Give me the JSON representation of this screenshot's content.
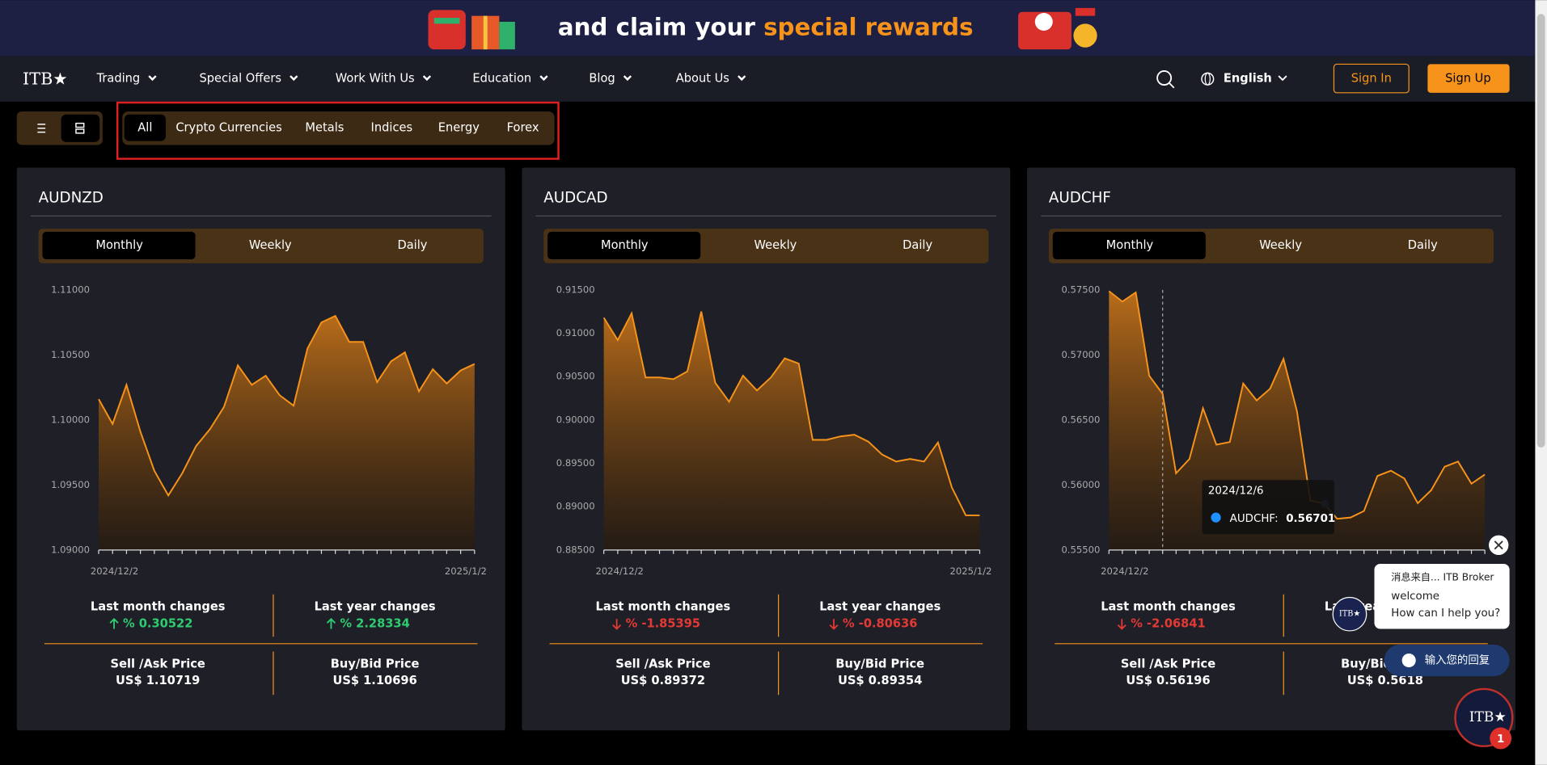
{
  "banner": {
    "text": "and claim your ",
    "highlight": "special rewards"
  },
  "nav": {
    "logo": "ITB★",
    "menu": [
      "Trading",
      "Special Offers",
      "Work With Us",
      "Education",
      "Blog",
      "About Us"
    ],
    "language": "English",
    "sign_in": "Sign In",
    "sign_up": "Sign Up"
  },
  "filters": [
    "All",
    "Crypto Currencies",
    "Metals",
    "Indices",
    "Energy",
    "Forex"
  ],
  "chart_data": [
    {
      "type": "area",
      "title": "AUDNZD",
      "tabs": [
        "Monthly",
        "Weekly",
        "Daily"
      ],
      "color": "#f7931a",
      "categories": [
        "2024/12/2",
        null,
        null,
        null,
        null,
        null,
        null,
        null,
        null,
        null,
        null,
        null,
        null,
        null,
        null,
        null,
        null,
        null,
        null,
        null,
        null,
        null,
        null,
        null,
        null,
        null,
        null,
        "2025/1/2"
      ],
      "values": [
        1.1016,
        1.0997,
        1.1027,
        1.0991,
        1.0961,
        1.0942,
        1.0959,
        1.098,
        1.0993,
        1.101,
        1.1042,
        1.1027,
        1.1034,
        1.1019,
        1.1011,
        1.1055,
        1.1075,
        1.108,
        1.106,
        1.106,
        1.1029,
        1.1045,
        1.1052,
        1.1022,
        1.1039,
        1.1028,
        1.1038,
        1.1043
      ],
      "ylim": [
        1.09,
        1.11
      ],
      "yticks": [
        {
          "value": 1.09,
          "label": "1.09000"
        },
        {
          "value": 1.095,
          "label": "1.09500"
        },
        {
          "value": 1.1,
          "label": "1.10000"
        },
        {
          "value": 1.105,
          "label": "1.10500"
        },
        {
          "value": 1.11,
          "label": "1.11000"
        }
      ],
      "stats": [
        {
          "label": "Last month changes",
          "value": "% 0.30522",
          "direction": "up"
        },
        {
          "label": "Last year changes",
          "value": "% 2.28334",
          "direction": "up"
        },
        {
          "label": "Sell /Ask Price",
          "value": "US$  1.10719"
        },
        {
          "label": "Buy/Bid Price",
          "value": "US$  1.10696"
        }
      ]
    },
    {
      "type": "area",
      "title": "AUDCAD",
      "tabs": [
        "Monthly",
        "Weekly",
        "Daily"
      ],
      "color": "#f7931a",
      "categories": [
        "2024/12/2",
        null,
        null,
        null,
        null,
        null,
        null,
        null,
        null,
        null,
        null,
        null,
        null,
        null,
        null,
        null,
        null,
        null,
        null,
        null,
        null,
        null,
        null,
        null,
        null,
        null,
        null,
        "2025/1/2"
      ],
      "values": [
        0.9118,
        0.9092,
        0.9123,
        0.9049,
        0.9049,
        0.9047,
        0.9056,
        0.9125,
        0.9043,
        0.9021,
        0.9051,
        0.9034,
        0.9049,
        0.9071,
        0.9065,
        0.8977,
        0.8977,
        0.8981,
        0.8983,
        0.8975,
        0.896,
        0.8952,
        0.8955,
        0.8952,
        0.8974,
        0.8922,
        0.889,
        0.889
      ],
      "ylim": [
        0.885,
        0.915
      ],
      "yticks": [
        {
          "value": 0.885,
          "label": "0.88500"
        },
        {
          "value": 0.89,
          "label": "0.89000"
        },
        {
          "value": 0.895,
          "label": "0.89500"
        },
        {
          "value": 0.9,
          "label": "0.90000"
        },
        {
          "value": 0.905,
          "label": "0.90500"
        },
        {
          "value": 0.91,
          "label": "0.91000"
        },
        {
          "value": 0.915,
          "label": "0.91500"
        }
      ],
      "stats": [
        {
          "label": "Last month changes",
          "value": "% -1.85395",
          "direction": "down"
        },
        {
          "label": "Last year changes",
          "value": "% -0.80636",
          "direction": "down"
        },
        {
          "label": "Sell /Ask Price",
          "value": "US$  0.89372"
        },
        {
          "label": "Buy/Bid Price",
          "value": "US$  0.89354"
        }
      ]
    },
    {
      "type": "area",
      "title": "AUDCHF",
      "tabs": [
        "Monthly",
        "Weekly",
        "Daily"
      ],
      "color": "#f7931a",
      "categories": [
        "2024/12/2",
        null,
        null,
        null,
        null,
        null,
        null,
        null,
        null,
        null,
        null,
        null,
        null,
        null,
        null,
        null,
        null,
        null,
        null,
        null,
        null,
        null,
        null,
        null,
        null,
        null,
        null,
        null,
        null
      ],
      "values": [
        0.5749,
        0.5741,
        0.5748,
        0.5684,
        0.56701,
        0.5609,
        0.562,
        0.5659,
        0.5631,
        0.5633,
        0.5678,
        0.5665,
        0.5674,
        0.5697,
        0.5657,
        0.5588,
        0.5586,
        0.5574,
        0.5575,
        0.558,
        0.5607,
        0.5611,
        0.5605,
        0.5586,
        0.5596,
        0.5614,
        0.5618,
        0.5601,
        0.5608
      ],
      "ylim": [
        0.555,
        0.575
      ],
      "yticks": [
        {
          "value": 0.555,
          "label": "0.55500"
        },
        {
          "value": 0.56,
          "label": "0.56000"
        },
        {
          "value": 0.565,
          "label": "0.56500"
        },
        {
          "value": 0.57,
          "label": "0.57000"
        },
        {
          "value": 0.575,
          "label": "0.57500"
        }
      ],
      "tooltip": {
        "date": "2024/12/6",
        "label": "AUDCHF:",
        "value": 0.56701
      },
      "stats": [
        {
          "label": "Last month changes",
          "value": "% -2.06841",
          "direction": "down"
        },
        {
          "label": "Last year changes"
        },
        {
          "label": "Sell /Ask Price",
          "value": "US$  0.56196"
        },
        {
          "label": "Buy/Bid Price",
          "value": "US$  0.5618"
        }
      ]
    }
  ],
  "chat": {
    "header": "消息来自... ITB Broker",
    "lines": [
      "welcome",
      "How can I help you?"
    ],
    "input": "输入您的回复",
    "logo": "ITB★",
    "badge": "1"
  }
}
